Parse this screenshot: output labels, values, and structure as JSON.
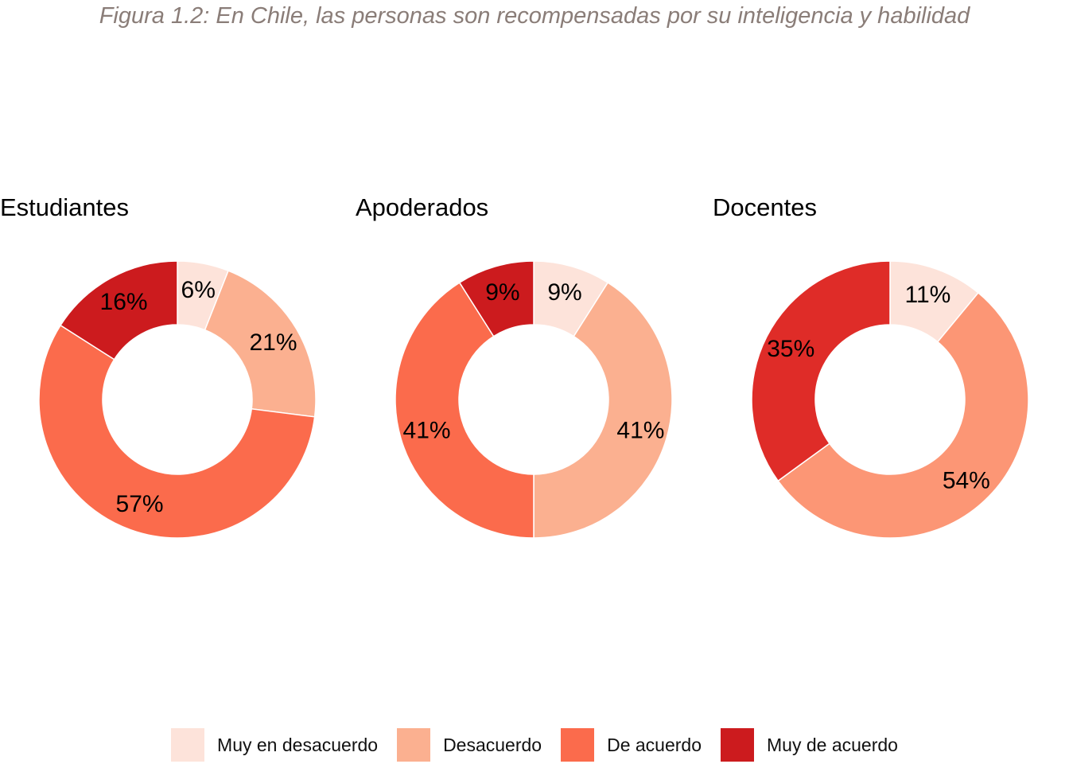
{
  "title": "Figura 1.2: En Chile, las personas son recompensadas por su inteligencia y habilidad",
  "categories": [
    "Muy en desacuerdo",
    "Desacuerdo",
    "De acuerdo",
    "Muy de acuerdo"
  ],
  "colors": [
    "#fde3da",
    "#fbb090",
    "#fb6b4c",
    "#cc1b1e"
  ],
  "chart_data": [
    {
      "type": "pie",
      "title": "Estudiantes",
      "categories": [
        "Muy en desacuerdo",
        "Desacuerdo",
        "De acuerdo",
        "Muy de acuerdo"
      ],
      "values": [
        6,
        21,
        57,
        16
      ],
      "labels": [
        "6%",
        "21%",
        "57%",
        "16%"
      ],
      "colors": [
        "#fde3da",
        "#fbb090",
        "#fb6b4c",
        "#cc1b1e"
      ]
    },
    {
      "type": "pie",
      "title": "Apoderados",
      "categories": [
        "Muy en desacuerdo",
        "Desacuerdo",
        "De acuerdo",
        "Muy de acuerdo"
      ],
      "values": [
        9,
        41,
        41,
        9
      ],
      "labels": [
        "9%",
        "41%",
        "41%",
        "9%"
      ],
      "colors": [
        "#fde3da",
        "#fbb090",
        "#fb6b4c",
        "#cc1b1e"
      ]
    },
    {
      "type": "pie",
      "title": "Docentes",
      "categories": [
        "Muy en desacuerdo",
        "Desacuerdo",
        "Muy de acuerdo"
      ],
      "values": [
        11,
        54,
        35
      ],
      "labels": [
        "11%",
        "54%",
        "35%"
      ],
      "colors": [
        "#fde3da",
        "#fc9675",
        "#df2c28"
      ]
    }
  ],
  "legend": {
    "placement": "bottom",
    "items": [
      {
        "label": "Muy en desacuerdo",
        "color": "#fde3da"
      },
      {
        "label": "Desacuerdo",
        "color": "#fbb090"
      },
      {
        "label": "De acuerdo",
        "color": "#fb6b4c"
      },
      {
        "label": "Muy de acuerdo",
        "color": "#cc1b1e"
      }
    ]
  }
}
